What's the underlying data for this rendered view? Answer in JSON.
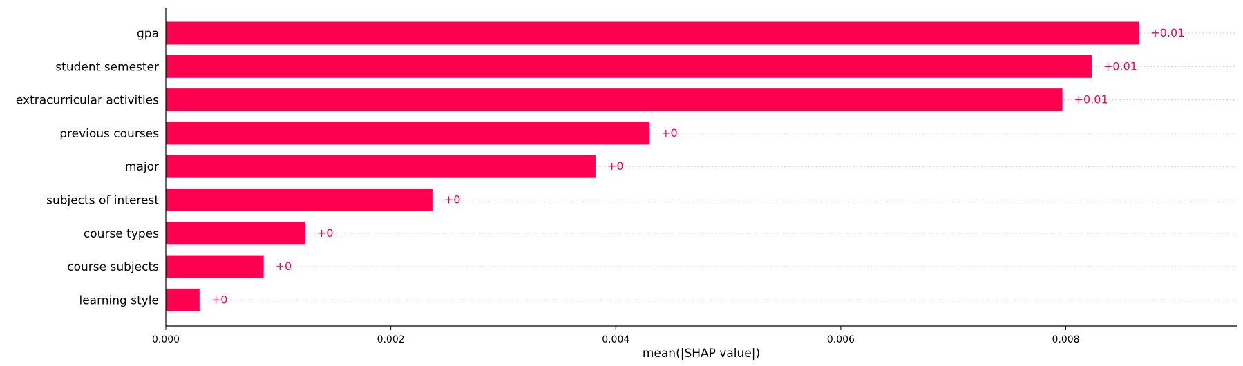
{
  "chart_data": {
    "type": "bar",
    "orientation": "horizontal",
    "categories": [
      "gpa",
      "student semester",
      "extracurricular activities",
      "previous courses",
      "major",
      "subjects of interest",
      "course types",
      "course subjects",
      "learning style"
    ],
    "values": [
      0.00865,
      0.00823,
      0.00797,
      0.0043,
      0.00382,
      0.00237,
      0.00124,
      0.00087,
      0.0003
    ],
    "data_labels": [
      "+0.01",
      "+0.01",
      "+0.01",
      "+0",
      "+0",
      "+0",
      "+0",
      "+0",
      "+0"
    ],
    "xlabel": "mean(|SHAP value|)",
    "ylabel": "",
    "title": "",
    "xlim": [
      0,
      0.00952
    ],
    "xticks": [
      0,
      0.002,
      0.004,
      0.006,
      0.008
    ],
    "xtick_labels": [
      "0.000",
      "0.002",
      "0.004",
      "0.006",
      "0.008"
    ],
    "grid": "dotted horizontal lines per category",
    "colors": {
      "bar": "#ff0051",
      "label": "#ff0051",
      "grid": "#cccccc",
      "axis": "#000000"
    }
  }
}
